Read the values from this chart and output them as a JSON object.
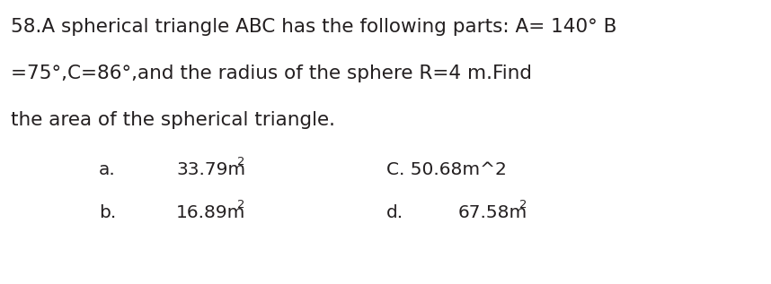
{
  "line1": "58.A spherical triangle ABC has the following parts: A= 140° B",
  "line2": "=75°,C=86°,and the radius of the sphere R=4 m.Find",
  "line3": "the area of the spherical triangle.",
  "opt_a_label": "a.",
  "opt_a_value": "33.79m",
  "opt_c_text": "C. 50.68m^2",
  "opt_b_label": "b.",
  "opt_b_value": "16.89m",
  "opt_d_label": "d.",
  "opt_d_value": "67.58m",
  "superscript": "2",
  "bg_color": "#ffffff",
  "text_color": "#231f20",
  "font_size_main": 15.5,
  "font_size_options": 14.5,
  "font_size_super": 9.5
}
